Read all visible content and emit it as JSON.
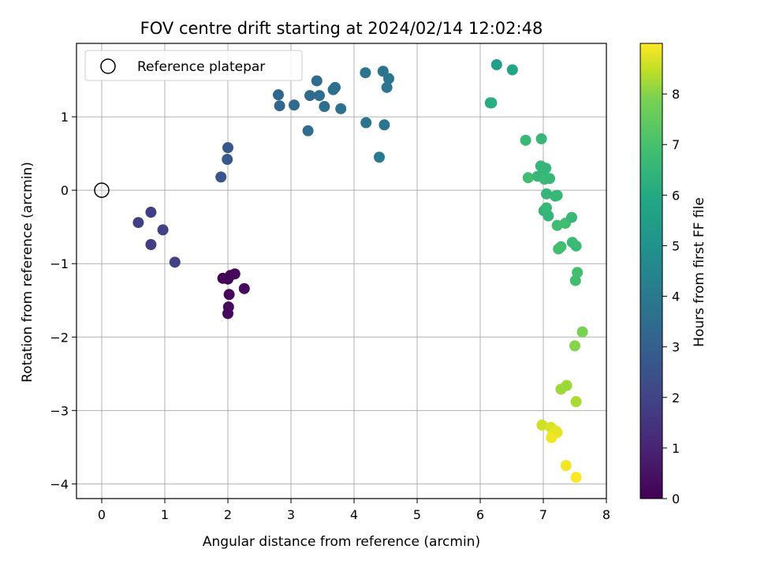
{
  "chart_data": {
    "type": "scatter",
    "title": "FOV centre drift starting at 2024/02/14 12:02:48",
    "xlabel": "Angular distance from reference (arcmin)",
    "ylabel": "Rotation from reference (arcmin)",
    "xlim": [
      -0.4,
      8.0
    ],
    "ylim": [
      -4.2,
      2.0
    ],
    "xticks": [
      "0",
      "1",
      "2",
      "3",
      "4",
      "5",
      "6",
      "7",
      "8"
    ],
    "yticks": [
      "−4",
      "−3",
      "−2",
      "−1",
      "0",
      "1"
    ],
    "grid": true,
    "legend": {
      "placement": "upper-left",
      "entries": [
        "Reference platepar"
      ]
    },
    "reference_point": {
      "x": 0,
      "y": 0
    },
    "colorbar": {
      "label": "Hours from first FF file",
      "range": [
        0,
        9.0
      ],
      "ticks": [
        "0",
        "1",
        "2",
        "3",
        "4",
        "5",
        "6",
        "7",
        "8"
      ],
      "colormap": "viridis"
    },
    "points": [
      {
        "x": 1.92,
        "y": -1.2,
        "t": 0.0
      },
      {
        "x": 2.0,
        "y": -1.21,
        "t": 0.1
      },
      {
        "x": 2.04,
        "y": -1.16,
        "t": 0.1
      },
      {
        "x": 2.11,
        "y": -1.14,
        "t": 0.2
      },
      {
        "x": 2.02,
        "y": -1.42,
        "t": 0.2
      },
      {
        "x": 2.26,
        "y": -1.34,
        "t": 0.3
      },
      {
        "x": 2.01,
        "y": -1.59,
        "t": 0.3
      },
      {
        "x": 2.0,
        "y": -1.68,
        "t": 0.2
      },
      {
        "x": 0.58,
        "y": -0.44,
        "t": 1.8
      },
      {
        "x": 0.78,
        "y": -0.3,
        "t": 1.8
      },
      {
        "x": 0.78,
        "y": -0.74,
        "t": 1.8
      },
      {
        "x": 0.97,
        "y": -0.54,
        "t": 1.9
      },
      {
        "x": 1.16,
        "y": -0.98,
        "t": 1.9
      },
      {
        "x": 1.89,
        "y": 0.18,
        "t": 2.6
      },
      {
        "x": 1.99,
        "y": 0.42,
        "t": 2.7
      },
      {
        "x": 2.0,
        "y": 0.58,
        "t": 2.7
      },
      {
        "x": 2.8,
        "y": 1.3,
        "t": 3.3
      },
      {
        "x": 2.82,
        "y": 1.15,
        "t": 3.3
      },
      {
        "x": 3.05,
        "y": 1.16,
        "t": 3.4
      },
      {
        "x": 3.27,
        "y": 0.81,
        "t": 3.5
      },
      {
        "x": 3.3,
        "y": 1.29,
        "t": 3.4
      },
      {
        "x": 3.41,
        "y": 1.49,
        "t": 3.5
      },
      {
        "x": 3.45,
        "y": 1.29,
        "t": 3.5
      },
      {
        "x": 3.53,
        "y": 1.14,
        "t": 3.6
      },
      {
        "x": 3.67,
        "y": 1.37,
        "t": 3.6
      },
      {
        "x": 3.7,
        "y": 1.4,
        "t": 3.6
      },
      {
        "x": 3.79,
        "y": 1.11,
        "t": 3.7
      },
      {
        "x": 4.18,
        "y": 1.6,
        "t": 3.8
      },
      {
        "x": 4.19,
        "y": 0.92,
        "t": 3.9
      },
      {
        "x": 4.4,
        "y": 0.45,
        "t": 4.0
      },
      {
        "x": 4.46,
        "y": 1.62,
        "t": 3.8
      },
      {
        "x": 4.48,
        "y": 0.89,
        "t": 3.9
      },
      {
        "x": 4.52,
        "y": 1.4,
        "t": 3.9
      },
      {
        "x": 4.55,
        "y": 1.52,
        "t": 3.9
      },
      {
        "x": 6.16,
        "y": 1.19,
        "t": 5.9
      },
      {
        "x": 6.18,
        "y": 1.19,
        "t": 6.2
      },
      {
        "x": 6.26,
        "y": 1.71,
        "t": 5.6
      },
      {
        "x": 6.51,
        "y": 1.64,
        "t": 5.8
      },
      {
        "x": 6.72,
        "y": 0.68,
        "t": 6.6
      },
      {
        "x": 6.76,
        "y": 0.17,
        "t": 6.8
      },
      {
        "x": 6.91,
        "y": 0.19,
        "t": 6.6
      },
      {
        "x": 6.96,
        "y": 0.33,
        "t": 6.5
      },
      {
        "x": 6.97,
        "y": 0.7,
        "t": 6.6
      },
      {
        "x": 7.0,
        "y": 0.21,
        "t": 6.4
      },
      {
        "x": 7.04,
        "y": 0.3,
        "t": 6.5
      },
      {
        "x": 7.02,
        "y": 0.15,
        "t": 6.7
      },
      {
        "x": 7.1,
        "y": 0.16,
        "t": 6.6
      },
      {
        "x": 7.05,
        "y": -0.05,
        "t": 6.5
      },
      {
        "x": 7.19,
        "y": -0.08,
        "t": 6.5
      },
      {
        "x": 7.22,
        "y": -0.07,
        "t": 6.6
      },
      {
        "x": 7.01,
        "y": -0.28,
        "t": 6.4
      },
      {
        "x": 7.05,
        "y": -0.24,
        "t": 6.6
      },
      {
        "x": 7.08,
        "y": -0.35,
        "t": 6.5
      },
      {
        "x": 7.22,
        "y": -0.48,
        "t": 6.8
      },
      {
        "x": 7.35,
        "y": -0.45,
        "t": 6.8
      },
      {
        "x": 7.45,
        "y": -0.37,
        "t": 6.6
      },
      {
        "x": 7.24,
        "y": -0.8,
        "t": 6.9
      },
      {
        "x": 7.28,
        "y": -0.77,
        "t": 6.9
      },
      {
        "x": 7.46,
        "y": -0.71,
        "t": 6.7
      },
      {
        "x": 7.52,
        "y": -0.76,
        "t": 6.7
      },
      {
        "x": 7.54,
        "y": -1.12,
        "t": 6.9
      },
      {
        "x": 7.51,
        "y": -1.23,
        "t": 6.9
      },
      {
        "x": 7.62,
        "y": -1.93,
        "t": 7.9
      },
      {
        "x": 7.5,
        "y": -2.12,
        "t": 8.0
      },
      {
        "x": 7.37,
        "y": -2.66,
        "t": 8.2
      },
      {
        "x": 7.28,
        "y": -2.71,
        "t": 8.2
      },
      {
        "x": 7.52,
        "y": -2.88,
        "t": 8.3
      },
      {
        "x": 6.98,
        "y": -3.2,
        "t": 8.6
      },
      {
        "x": 7.12,
        "y": -3.23,
        "t": 8.7
      },
      {
        "x": 7.2,
        "y": -3.28,
        "t": 8.8
      },
      {
        "x": 7.15,
        "y": -3.33,
        "t": 8.8
      },
      {
        "x": 7.22,
        "y": -3.3,
        "t": 8.8
      },
      {
        "x": 7.13,
        "y": -3.37,
        "t": 8.9
      },
      {
        "x": 7.36,
        "y": -3.75,
        "t": 8.9
      },
      {
        "x": 7.52,
        "y": -3.91,
        "t": 9.0
      }
    ]
  }
}
